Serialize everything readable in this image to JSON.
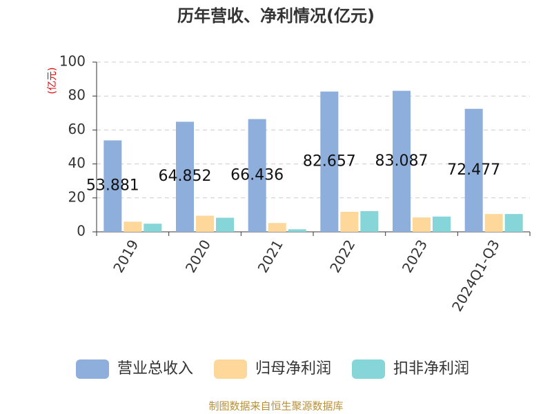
{
  "chart_data": {
    "type": "bar",
    "title": "历年营收、净利情况(亿元)",
    "y_label": "(亿元)",
    "categories": [
      "2019",
      "2020",
      "2021",
      "2022",
      "2023",
      "2024Q1-Q3"
    ],
    "series": [
      {
        "name": "营业总收入",
        "color": "#8eaedb",
        "values": [
          53.881,
          64.852,
          66.436,
          82.657,
          83.087,
          72.477
        ]
      },
      {
        "name": "归母净利润",
        "color": "#fdd89a",
        "values": [
          6.0,
          9.5,
          5.2,
          11.8,
          8.5,
          10.5
        ]
      },
      {
        "name": "扣非净利润",
        "color": "#86d5d8",
        "values": [
          4.8,
          8.3,
          1.5,
          12.2,
          9.0,
          10.5
        ]
      }
    ],
    "labeled_series": 0,
    "ylim": [
      0,
      100
    ],
    "yticks": [
      0,
      20,
      40,
      60,
      80,
      100
    ],
    "grid": true,
    "legend": "bottom",
    "source": "制图数据来自恒生聚源数据库"
  }
}
